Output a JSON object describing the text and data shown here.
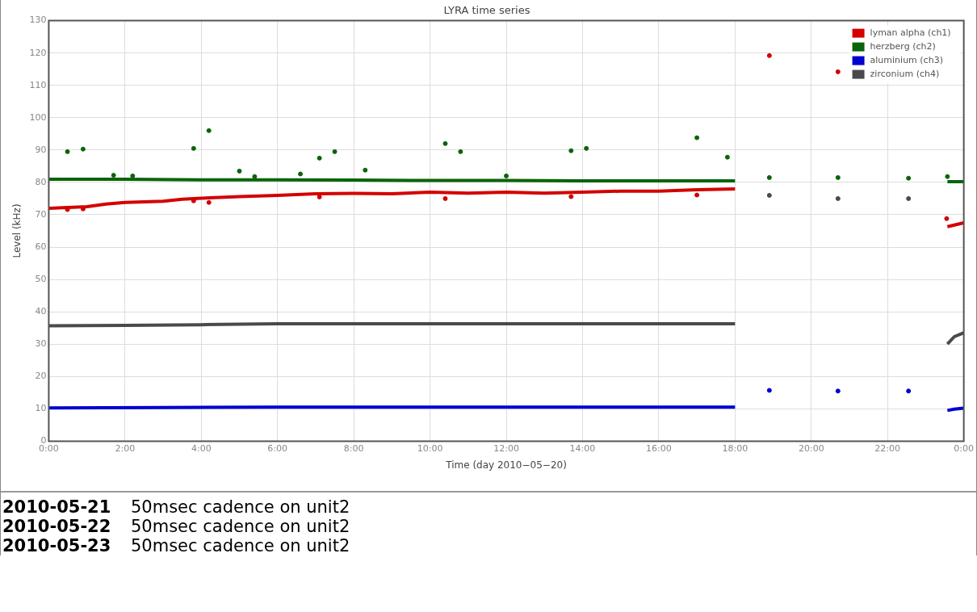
{
  "chart_data": {
    "type": "line",
    "title": "LYRA time series",
    "xlabel": "Time (day 2010−05−20)",
    "ylabel": "Level (kHz)",
    "xlim": [
      0,
      24
    ],
    "xticks": [
      {
        "value": 0,
        "label": "0:00"
      },
      {
        "value": 2,
        "label": "2:00"
      },
      {
        "value": 4,
        "label": "4:00"
      },
      {
        "value": 6,
        "label": "6:00"
      },
      {
        "value": 8,
        "label": "8:00"
      },
      {
        "value": 10,
        "label": "10:00"
      },
      {
        "value": 12,
        "label": "12:00"
      },
      {
        "value": 14,
        "label": "14:00"
      },
      {
        "value": 16,
        "label": "16:00"
      },
      {
        "value": 18,
        "label": "18:00"
      },
      {
        "value": 20,
        "label": "20:00"
      },
      {
        "value": 22,
        "label": "22:00"
      },
      {
        "value": 24,
        "label": "0:00"
      }
    ],
    "ylim": [
      0,
      130
    ],
    "yticks": [
      0,
      10,
      20,
      30,
      40,
      50,
      60,
      70,
      80,
      90,
      100,
      110,
      120,
      130
    ],
    "grid": true,
    "legend": "top right",
    "series": [
      {
        "name": "lyman alpha (ch1)",
        "color": "#d40000",
        "marker": "none",
        "x": [
          0,
          1,
          1.5,
          2,
          3,
          3.5,
          4,
          5,
          6,
          7,
          8,
          9,
          10,
          11,
          12,
          13,
          14,
          15,
          16,
          17,
          18,
          18.5,
          23.57,
          23.75,
          24
        ],
        "values": [
          72,
          72.5,
          73.3,
          73.8,
          74.2,
          74.8,
          75.1,
          75.6,
          76,
          76.5,
          76.6,
          76.5,
          77,
          76.7,
          77,
          76.7,
          77,
          77.3,
          77.3,
          77.7,
          78,
          null,
          66.3,
          66.8,
          67.5
        ]
      },
      {
        "name": "herzberg (ch2)",
        "color": "#0a640a",
        "marker": "none",
        "x": [
          0,
          2,
          4,
          6,
          8,
          10,
          12,
          14,
          16,
          18,
          18.5,
          23.57,
          24
        ],
        "values": [
          81,
          81,
          80.8,
          80.8,
          80.7,
          80.6,
          80.6,
          80.5,
          80.5,
          80.5,
          null,
          80.2,
          80.2
        ]
      },
      {
        "name": "aluminium (ch3)",
        "color": "#0000d0",
        "marker": "none",
        "x": [
          0,
          3,
          6,
          9,
          12,
          15,
          18,
          18.5,
          23.57,
          23.75,
          24
        ],
        "values": [
          10.3,
          10.4,
          10.5,
          10.5,
          10.5,
          10.5,
          10.5,
          null,
          9.5,
          9.9,
          10.2
        ]
      },
      {
        "name": "zirconium (ch4)",
        "color": "#4a4a4a",
        "marker": "none",
        "x": [
          0,
          2,
          4,
          6,
          8,
          10,
          12,
          14,
          16,
          18,
          18.5,
          23.57,
          23.75,
          24
        ],
        "values": [
          35.7,
          35.8,
          36,
          36.3,
          36.3,
          36.3,
          36.3,
          36.3,
          36.3,
          36.3,
          null,
          30,
          32.3,
          33.5
        ]
      },
      {
        "type": "scatter",
        "marker": "circle",
        "color": "#d40000",
        "x": [
          0.49,
          0.9,
          3.8,
          4.2,
          7.1,
          10.4,
          13.7,
          17,
          18.9,
          20.7,
          23.55
        ],
        "values": [
          71.6,
          71.8,
          74.3,
          73.8,
          75.5,
          75,
          75.6,
          76.1,
          119.2,
          114.2,
          68.8
        ]
      },
      {
        "type": "scatter",
        "marker": "circle",
        "color": "#0a640a",
        "x": [
          0.49,
          0.9,
          1.7,
          2.2,
          3.8,
          4.2,
          5,
          5.4,
          6.6,
          7.1,
          7.5,
          8.3,
          10.4,
          10.8,
          12,
          13.7,
          14.1,
          17,
          17.8,
          18.9,
          20.7,
          22.55,
          23.57
        ],
        "values": [
          89.5,
          90.3,
          82.2,
          82,
          90.5,
          96,
          83.5,
          81.8,
          82.6,
          87.5,
          89.5,
          83.8,
          92,
          89.5,
          82,
          89.8,
          90.5,
          93.8,
          87.8,
          81.5,
          81.5,
          81.3,
          81.8
        ]
      },
      {
        "type": "scatter",
        "marker": "circle",
        "color": "#0000d0",
        "x": [
          18.9,
          20.7,
          22.55
        ],
        "values": [
          15.7,
          15.5,
          15.5
        ]
      },
      {
        "type": "scatter",
        "marker": "circle",
        "color": "#4a4a4a",
        "x": [
          18.9,
          20.7,
          22.55
        ],
        "values": [
          76,
          75,
          75
        ]
      }
    ],
    "annotations": [
      "2010-05-21 50msec cadence on unit2",
      "2010-05-22 50msec cadence on unit2",
      "2010-05-23 50msec cadence on unit2"
    ]
  }
}
